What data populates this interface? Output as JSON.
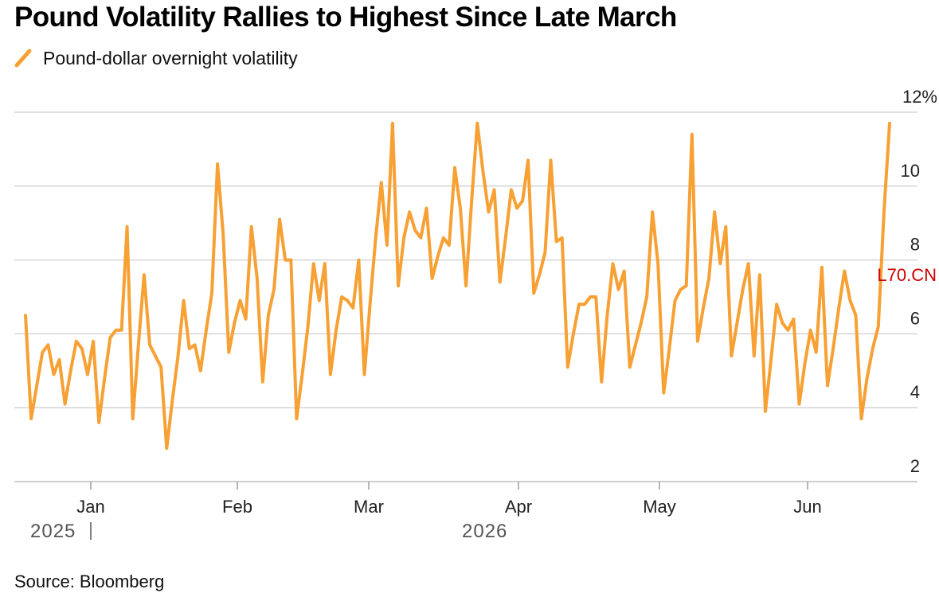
{
  "title": "Pound Volatility Rallies to Highest Since Late March",
  "legend": {
    "label": "Pound-dollar overnight volatility",
    "color": "#f7a033"
  },
  "source": "Source: Bloomberg",
  "chart_data": {
    "type": "line",
    "title": "Pound Volatility Rallies to Highest Since Late March",
    "ylim": [
      2,
      12
    ],
    "y_ticks": [
      {
        "value": 2,
        "label": "2"
      },
      {
        "value": 4,
        "label": "4"
      },
      {
        "value": 6,
        "label": "6"
      },
      {
        "value": 8,
        "label": "8"
      },
      {
        "value": 10,
        "label": "10"
      },
      {
        "value": 12,
        "label": "12%"
      }
    ],
    "x_ticks": [
      "Jan",
      "Feb",
      "Mar",
      "Apr",
      "May",
      "Jun"
    ],
    "years": [
      "2025",
      "2026"
    ],
    "grid": true,
    "y_axis_side": "right",
    "annotation": {
      "text": "L70.CN",
      "color": "#cc0000"
    },
    "series": [
      {
        "name": "Pound-dollar overnight volatility",
        "color": "#f7a033",
        "values": [
          6.5,
          3.7,
          4.6,
          5.5,
          5.7,
          4.9,
          5.3,
          4.1,
          5.0,
          5.8,
          5.6,
          4.9,
          5.8,
          3.6,
          4.8,
          5.9,
          6.1,
          6.1,
          8.9,
          3.7,
          5.7,
          7.6,
          5.7,
          5.4,
          5.1,
          2.9,
          4.2,
          5.4,
          6.9,
          5.6,
          5.7,
          5.0,
          6.1,
          7.1,
          10.6,
          8.7,
          5.5,
          6.3,
          6.9,
          6.4,
          8.9,
          7.5,
          4.7,
          6.5,
          7.2,
          9.1,
          8.0,
          8.0,
          3.7,
          4.9,
          6.2,
          7.9,
          6.9,
          7.9,
          4.9,
          6.1,
          7.0,
          6.9,
          6.7,
          8.0,
          4.9,
          6.8,
          8.6,
          10.1,
          8.4,
          11.7,
          7.3,
          8.6,
          9.3,
          8.8,
          8.6,
          9.4,
          7.5,
          8.1,
          8.6,
          8.4,
          10.5,
          9.4,
          7.3,
          9.6,
          11.7,
          10.4,
          9.3,
          9.9,
          7.4,
          8.6,
          9.9,
          9.4,
          9.6,
          10.7,
          7.1,
          7.6,
          8.2,
          10.7,
          8.5,
          8.6,
          5.1,
          6.0,
          6.8,
          6.8,
          7.0,
          7.0,
          4.7,
          6.5,
          7.9,
          7.2,
          7.7,
          5.1,
          5.7,
          6.3,
          7.0,
          9.3,
          7.9,
          4.4,
          5.6,
          6.9,
          7.2,
          7.3,
          11.4,
          5.8,
          6.7,
          7.5,
          9.3,
          7.9,
          8.9,
          5.4,
          6.3,
          7.2,
          7.9,
          5.4,
          7.6,
          3.9,
          5.3,
          6.8,
          6.3,
          6.1,
          6.4,
          4.1,
          5.2,
          6.1,
          5.5,
          7.8,
          4.6,
          5.6,
          6.7,
          7.7,
          6.9,
          6.5,
          3.7,
          4.8,
          5.6,
          6.2,
          9.3,
          11.7
        ]
      }
    ]
  }
}
